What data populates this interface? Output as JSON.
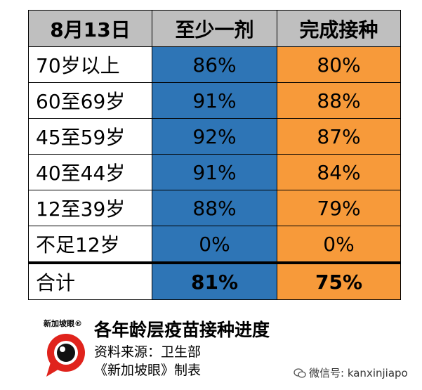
{
  "table": {
    "headers": [
      "8月13日",
      "至少一剂",
      "完成接种"
    ],
    "rows": [
      {
        "age": "70岁以上",
        "one_dose": "86%",
        "full": "80%"
      },
      {
        "age": "60至69岁",
        "one_dose": "91%",
        "full": "88%"
      },
      {
        "age": "45至59岁",
        "one_dose": "92%",
        "full": "87%"
      },
      {
        "age": "40至44岁",
        "one_dose": "91%",
        "full": "84%"
      },
      {
        "age": "12至39岁",
        "one_dose": "88%",
        "full": "79%"
      },
      {
        "age": "不足12岁",
        "one_dose": "0%",
        "full": "0%"
      }
    ],
    "total": {
      "age": "合计",
      "one_dose": "81%",
      "full": "75%"
    }
  },
  "footer": {
    "logo_text": "新加坡眼®",
    "title": "各年龄层疫苗接种进度",
    "source": "资料来源：卫生部",
    "maker": "《新加坡眼》制表",
    "wechat_icon": "wechat-icon",
    "wechat": "微信号: kanxinjiapo"
  },
  "colors": {
    "header_bg": "#bfbfbf",
    "one_dose_bg": "#2e75b6",
    "full_bg": "#f79a3a",
    "logo_red": "#e0231c"
  }
}
